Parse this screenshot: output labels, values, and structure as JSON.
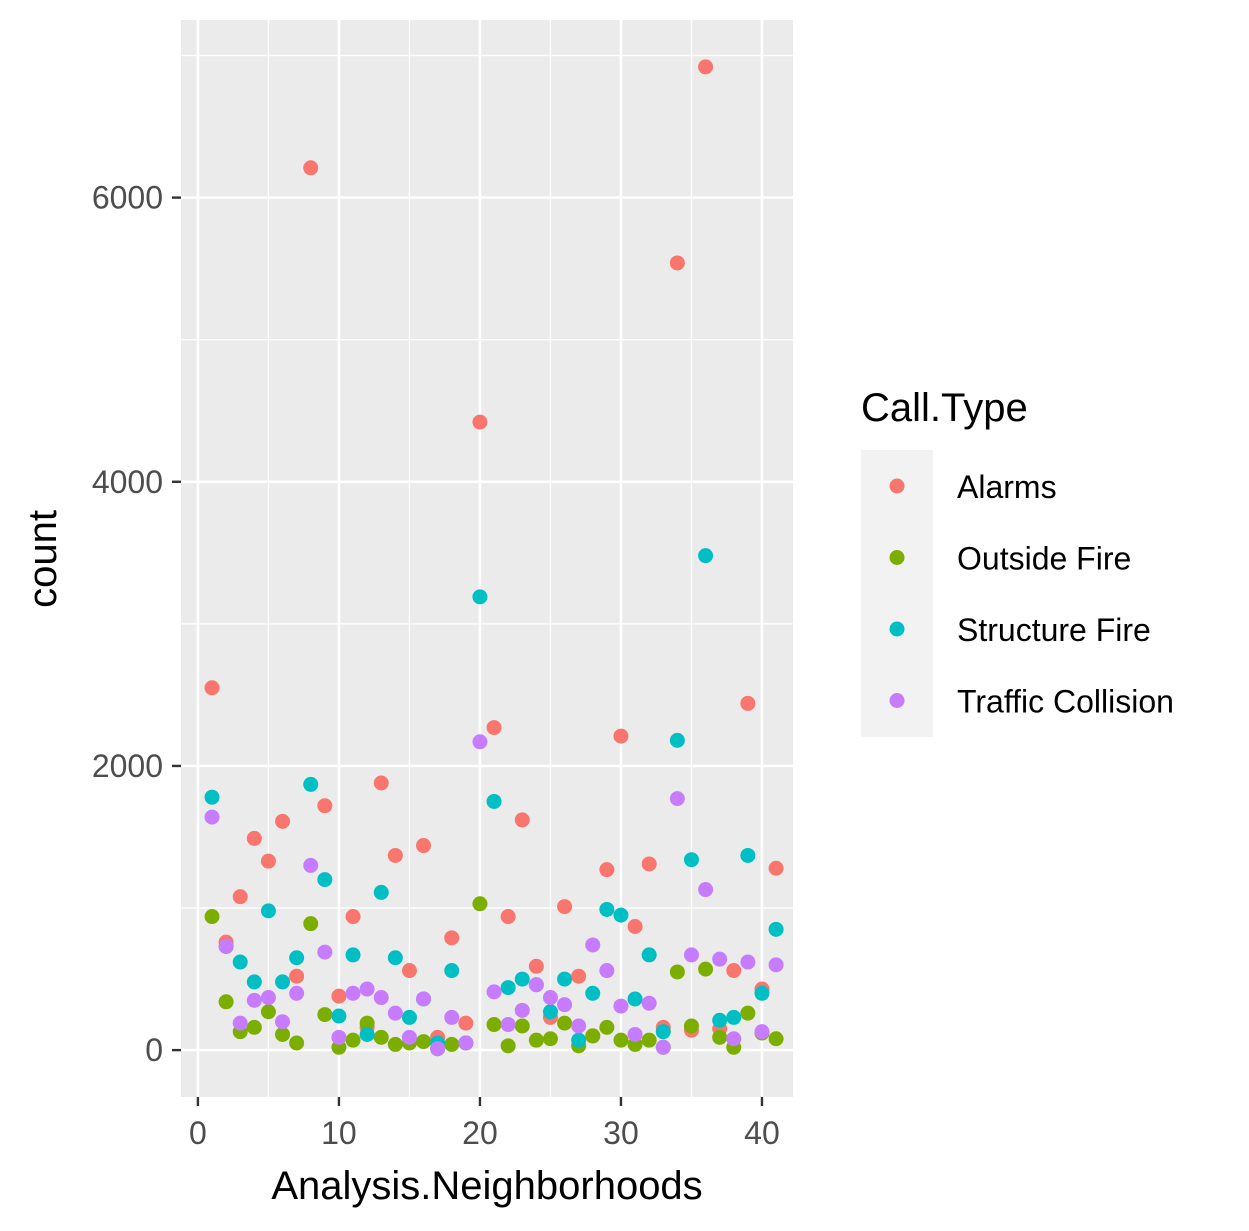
{
  "chart_data": {
    "type": "scatter",
    "title": "",
    "xlabel": "Analysis.Neighborhoods",
    "ylabel": "count",
    "xlim": [
      -1.2,
      42.2
    ],
    "ylim": [
      -330,
      7250
    ],
    "x_ticks": [
      0,
      10,
      20,
      30,
      40
    ],
    "y_ticks": [
      0,
      2000,
      4000,
      6000
    ],
    "grid": true,
    "legend": {
      "title": "Call.Type",
      "position": "right"
    },
    "series": [
      {
        "name": "Alarms",
        "color": "#F8766D",
        "points": [
          [
            1,
            2550
          ],
          [
            2,
            760
          ],
          [
            3,
            1080
          ],
          [
            4,
            1490
          ],
          [
            5,
            1330
          ],
          [
            6,
            1610
          ],
          [
            7,
            520
          ],
          [
            8,
            6210
          ],
          [
            9,
            1720
          ],
          [
            10,
            380
          ],
          [
            11,
            940
          ],
          [
            12,
            160
          ],
          [
            13,
            1880
          ],
          [
            14,
            1370
          ],
          [
            15,
            560
          ],
          [
            16,
            1440
          ],
          [
            17,
            90
          ],
          [
            18,
            790
          ],
          [
            19,
            190
          ],
          [
            20,
            4420
          ],
          [
            21,
            2270
          ],
          [
            22,
            940
          ],
          [
            23,
            1620
          ],
          [
            24,
            590
          ],
          [
            25,
            230
          ],
          [
            26,
            1010
          ],
          [
            27,
            520
          ],
          [
            28,
            100
          ],
          [
            29,
            1270
          ],
          [
            30,
            2210
          ],
          [
            31,
            870
          ],
          [
            32,
            1310
          ],
          [
            33,
            160
          ],
          [
            34,
            5540
          ],
          [
            35,
            140
          ],
          [
            36,
            6920
          ],
          [
            37,
            150
          ],
          [
            38,
            560
          ],
          [
            39,
            2440
          ],
          [
            40,
            430
          ],
          [
            41,
            1280
          ]
        ]
      },
      {
        "name": "Outside Fire",
        "color": "#7CAE00",
        "points": [
          [
            1,
            940
          ],
          [
            2,
            340
          ],
          [
            3,
            130
          ],
          [
            4,
            160
          ],
          [
            5,
            270
          ],
          [
            6,
            110
          ],
          [
            7,
            50
          ],
          [
            8,
            890
          ],
          [
            9,
            250
          ],
          [
            10,
            20
          ],
          [
            11,
            70
          ],
          [
            12,
            190
          ],
          [
            13,
            90
          ],
          [
            14,
            40
          ],
          [
            15,
            50
          ],
          [
            16,
            60
          ],
          [
            17,
            10
          ],
          [
            18,
            40
          ],
          [
            19,
            50
          ],
          [
            20,
            1030
          ],
          [
            21,
            180
          ],
          [
            22,
            30
          ],
          [
            23,
            170
          ],
          [
            24,
            70
          ],
          [
            25,
            80
          ],
          [
            26,
            190
          ],
          [
            27,
            30
          ],
          [
            28,
            100
          ],
          [
            29,
            160
          ],
          [
            30,
            70
          ],
          [
            31,
            40
          ],
          [
            32,
            70
          ],
          [
            33,
            20
          ],
          [
            34,
            550
          ],
          [
            35,
            170
          ],
          [
            36,
            570
          ],
          [
            37,
            90
          ],
          [
            38,
            20
          ],
          [
            39,
            260
          ],
          [
            40,
            120
          ],
          [
            41,
            80
          ]
        ]
      },
      {
        "name": "Structure Fire",
        "color": "#00BFC4",
        "points": [
          [
            1,
            1780
          ],
          [
            2,
            730
          ],
          [
            3,
            620
          ],
          [
            4,
            480
          ],
          [
            5,
            980
          ],
          [
            6,
            480
          ],
          [
            7,
            650
          ],
          [
            8,
            1870
          ],
          [
            9,
            1200
          ],
          [
            10,
            240
          ],
          [
            11,
            670
          ],
          [
            12,
            110
          ],
          [
            13,
            1110
          ],
          [
            14,
            650
          ],
          [
            15,
            230
          ],
          [
            16,
            360
          ],
          [
            17,
            50
          ],
          [
            18,
            560
          ],
          [
            19,
            50
          ],
          [
            20,
            3190
          ],
          [
            21,
            1750
          ],
          [
            22,
            440
          ],
          [
            23,
            500
          ],
          [
            24,
            460
          ],
          [
            25,
            270
          ],
          [
            26,
            500
          ],
          [
            27,
            70
          ],
          [
            28,
            400
          ],
          [
            29,
            990
          ],
          [
            30,
            950
          ],
          [
            31,
            360
          ],
          [
            32,
            670
          ],
          [
            33,
            130
          ],
          [
            34,
            2180
          ],
          [
            35,
            1340
          ],
          [
            36,
            3480
          ],
          [
            37,
            210
          ],
          [
            38,
            230
          ],
          [
            39,
            1370
          ],
          [
            40,
            400
          ],
          [
            41,
            850
          ]
        ]
      },
      {
        "name": "Traffic Collision",
        "color": "#C77CFF",
        "points": [
          [
            1,
            1640
          ],
          [
            2,
            730
          ],
          [
            3,
            190
          ],
          [
            4,
            350
          ],
          [
            5,
            370
          ],
          [
            6,
            200
          ],
          [
            7,
            400
          ],
          [
            8,
            1300
          ],
          [
            9,
            690
          ],
          [
            10,
            90
          ],
          [
            11,
            400
          ],
          [
            12,
            430
          ],
          [
            13,
            370
          ],
          [
            14,
            260
          ],
          [
            15,
            90
          ],
          [
            16,
            360
          ],
          [
            17,
            10
          ],
          [
            18,
            230
          ],
          [
            19,
            50
          ],
          [
            20,
            2170
          ],
          [
            21,
            410
          ],
          [
            22,
            180
          ],
          [
            23,
            280
          ],
          [
            24,
            460
          ],
          [
            25,
            370
          ],
          [
            26,
            320
          ],
          [
            27,
            170
          ],
          [
            28,
            740
          ],
          [
            29,
            560
          ],
          [
            30,
            310
          ],
          [
            31,
            110
          ],
          [
            32,
            330
          ],
          [
            33,
            20
          ],
          [
            34,
            1770
          ],
          [
            35,
            670
          ],
          [
            36,
            1130
          ],
          [
            37,
            640
          ],
          [
            38,
            80
          ],
          [
            39,
            620
          ],
          [
            40,
            130
          ],
          [
            41,
            600
          ]
        ]
      }
    ]
  }
}
